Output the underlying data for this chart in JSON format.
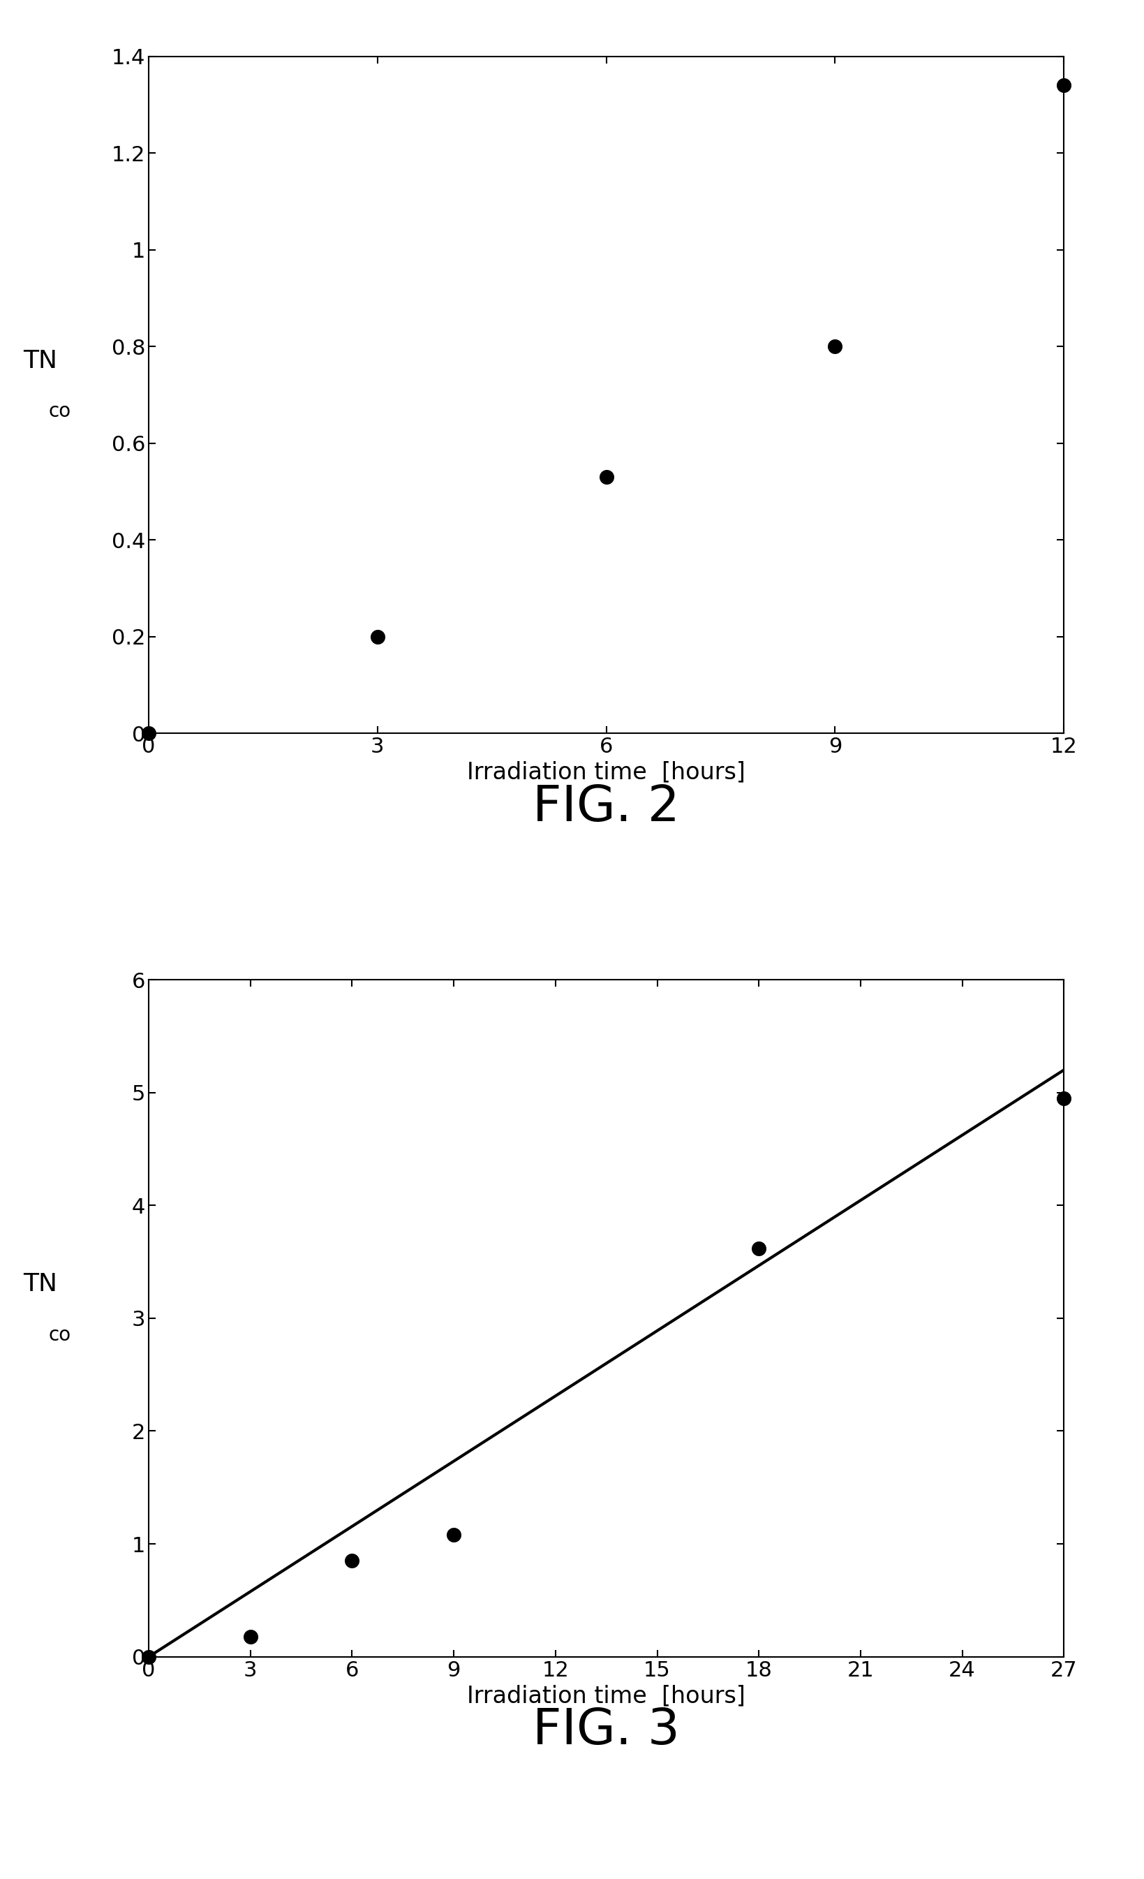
{
  "fig2": {
    "x": [
      0,
      3,
      6,
      9,
      12
    ],
    "y": [
      0,
      0.2,
      0.53,
      0.8,
      1.34
    ],
    "xlim": [
      0,
      12
    ],
    "ylim": [
      0,
      1.4
    ],
    "xticks": [
      0,
      3,
      6,
      9,
      12
    ],
    "yticks": [
      0,
      0.2,
      0.4,
      0.6,
      0.8,
      1.0,
      1.2,
      1.4
    ],
    "ytick_labels": [
      "0",
      "0.2",
      "0.4",
      "0.6",
      "0.8",
      "1",
      "1.2",
      "1.4"
    ],
    "xlabel": "Irradiation time  [hours]",
    "ylabel": "TN",
    "ylabel_sub": "co",
    "caption": "FIG. 2",
    "marker_size": 200
  },
  "fig3": {
    "x": [
      0,
      3,
      6,
      9,
      18,
      27
    ],
    "y": [
      0,
      0.18,
      0.85,
      1.08,
      3.62,
      4.95
    ],
    "line_x": [
      0,
      27
    ],
    "line_y": [
      0,
      5.2
    ],
    "xlim": [
      0,
      27
    ],
    "ylim": [
      0,
      6
    ],
    "xticks": [
      0,
      3,
      6,
      9,
      12,
      15,
      18,
      21,
      24,
      27
    ],
    "yticks": [
      0,
      1,
      2,
      3,
      4,
      5,
      6
    ],
    "xlabel": "Irradiation time  [hours]",
    "ylabel": "TN",
    "ylabel_sub": "co",
    "caption": "FIG. 3",
    "marker_size": 200
  },
  "background_color": "#ffffff",
  "marker_color": "#000000",
  "line_color": "#000000",
  "axis_color": "#000000",
  "font_size_ticks": 22,
  "font_size_labels": 24,
  "font_size_caption": 52,
  "font_size_ylabel": 24,
  "spine_linewidth": 1.5
}
